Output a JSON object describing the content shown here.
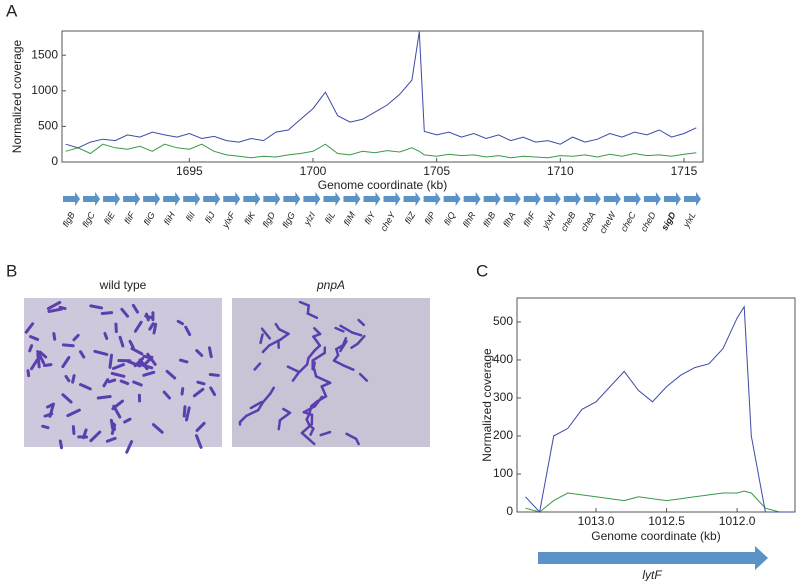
{
  "panel_labels": [
    "A",
    "B",
    "C"
  ],
  "genes": [
    "flgB",
    "flgC",
    "fliE",
    "fliF",
    "fliG",
    "fliH",
    "fliI",
    "fliJ",
    "ylxF",
    "fliK",
    "flgD",
    "flgG",
    "ylzI",
    "fliL",
    "fliM",
    "fliY",
    "cheY",
    "fliZ",
    "fliP",
    "fliQ",
    "flhR",
    "flhB",
    "flhA",
    "flhF",
    "ylxH",
    "cheB",
    "cheA",
    "cheW",
    "cheC",
    "cheD",
    "sigD",
    "ylxL"
  ],
  "micrographs": [
    "wild type",
    "pnpA"
  ],
  "gene_c": "lytF",
  "chart_data": [
    {
      "type": "line",
      "ylabel": "Normalized coverage",
      "xlabel": "Genome coordinate (kb)",
      "xlim": [
        1689.85,
        1715.77
      ],
      "ylim": [
        0,
        1840
      ],
      "xticks": [
        1695,
        1700,
        1705,
        1710,
        1715
      ],
      "yticks": [
        0,
        500,
        1000,
        1500
      ],
      "x": [
        1690,
        1690.5,
        1691,
        1691.5,
        1692,
        1692.5,
        1693,
        1693.5,
        1694,
        1694.5,
        1695,
        1695.5,
        1696,
        1696.5,
        1697,
        1697.5,
        1698,
        1698.5,
        1699,
        1699.5,
        1700,
        1700.5,
        1701,
        1701.5,
        1702,
        1702.5,
        1703,
        1703.5,
        1704,
        1704.3,
        1704.5,
        1705,
        1705.5,
        1706,
        1706.5,
        1707,
        1707.5,
        1708,
        1708.5,
        1709,
        1709.5,
        1710,
        1710.5,
        1711,
        1711.5,
        1712,
        1712.5,
        1713,
        1713.5,
        1714,
        1714.5,
        1715,
        1715.5
      ],
      "series": [
        {
          "color": "#3b4aa8",
          "values": [
            250,
            200,
            280,
            320,
            300,
            380,
            350,
            420,
            380,
            350,
            400,
            330,
            360,
            300,
            280,
            330,
            300,
            420,
            450,
            600,
            750,
            980,
            650,
            560,
            600,
            700,
            800,
            950,
            1150,
            1830,
            430,
            380,
            420,
            350,
            400,
            330,
            380,
            300,
            350,
            280,
            300,
            250,
            350,
            280,
            320,
            400,
            350,
            420,
            380,
            450,
            350,
            400,
            480
          ]
        },
        {
          "color": "#3a9a45",
          "values": [
            150,
            200,
            120,
            250,
            200,
            180,
            220,
            150,
            250,
            200,
            180,
            250,
            150,
            100,
            80,
            60,
            80,
            70,
            100,
            120,
            150,
            250,
            120,
            100,
            150,
            130,
            160,
            140,
            200,
            150,
            100,
            80,
            110,
            90,
            100,
            70,
            90,
            60,
            80,
            70,
            60,
            90,
            80,
            100,
            70,
            110,
            80,
            120,
            90,
            100,
            80,
            110,
            130
          ]
        }
      ]
    },
    {
      "type": "line",
      "ylabel": "Normalized coverage",
      "xlabel": "Genome coordinate (kb)",
      "xlim": [
        1013.56,
        1011.59
      ],
      "ylim": [
        0,
        563
      ],
      "xticks": [
        {
          "value": 1013,
          "label": "1013.0"
        },
        {
          "value": 1012.5,
          "label": "1012.5"
        },
        {
          "value": 1012,
          "label": "1012.0"
        }
      ],
      "yticks": [
        0,
        100,
        200,
        300,
        400,
        500
      ],
      "x": [
        1013.5,
        1013.4,
        1013.3,
        1013.2,
        1013.1,
        1013.0,
        1012.9,
        1012.8,
        1012.7,
        1012.6,
        1012.5,
        1012.4,
        1012.3,
        1012.2,
        1012.1,
        1012.0,
        1011.95,
        1011.9,
        1011.8,
        1011.7,
        1011.6
      ],
      "series": [
        {
          "color": "#3b4aa8",
          "values": [
            40,
            0,
            200,
            220,
            270,
            290,
            330,
            370,
            320,
            290,
            330,
            360,
            380,
            390,
            430,
            510,
            540,
            200,
            0,
            0,
            0
          ]
        },
        {
          "color": "#3a9a45",
          "values": [
            10,
            0,
            30,
            50,
            45,
            40,
            35,
            30,
            40,
            35,
            30,
            35,
            40,
            45,
            50,
            50,
            55,
            50,
            10,
            0,
            0
          ]
        }
      ]
    }
  ]
}
